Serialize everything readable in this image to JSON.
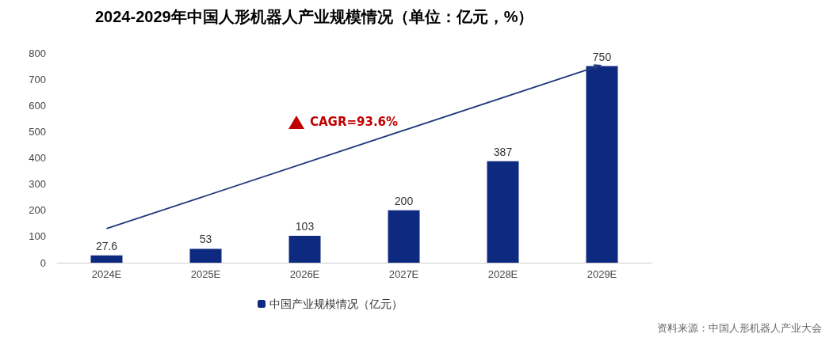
{
  "chart_data": {
    "type": "bar",
    "title": "2024-2029年中国人形机器人产业规模情况（单位：亿元，%）",
    "categories": [
      "2024E",
      "2025E",
      "2026E",
      "2027E",
      "2028E",
      "2029E"
    ],
    "series": [
      {
        "name": "中国产业规模情况（亿元）",
        "color": "#0e2a80",
        "values": [
          27.6,
          53,
          103,
          200,
          387,
          750
        ]
      }
    ],
    "ylim": [
      0,
      800
    ],
    "yticks": [
      0,
      100,
      200,
      300,
      400,
      500,
      600,
      700,
      800
    ],
    "grid": false,
    "legend": "bottom",
    "data_labels": true,
    "annotations": [
      "CAGR=93.6%",
      "资料来源：中国人形机器人产业大会"
    ]
  }
}
